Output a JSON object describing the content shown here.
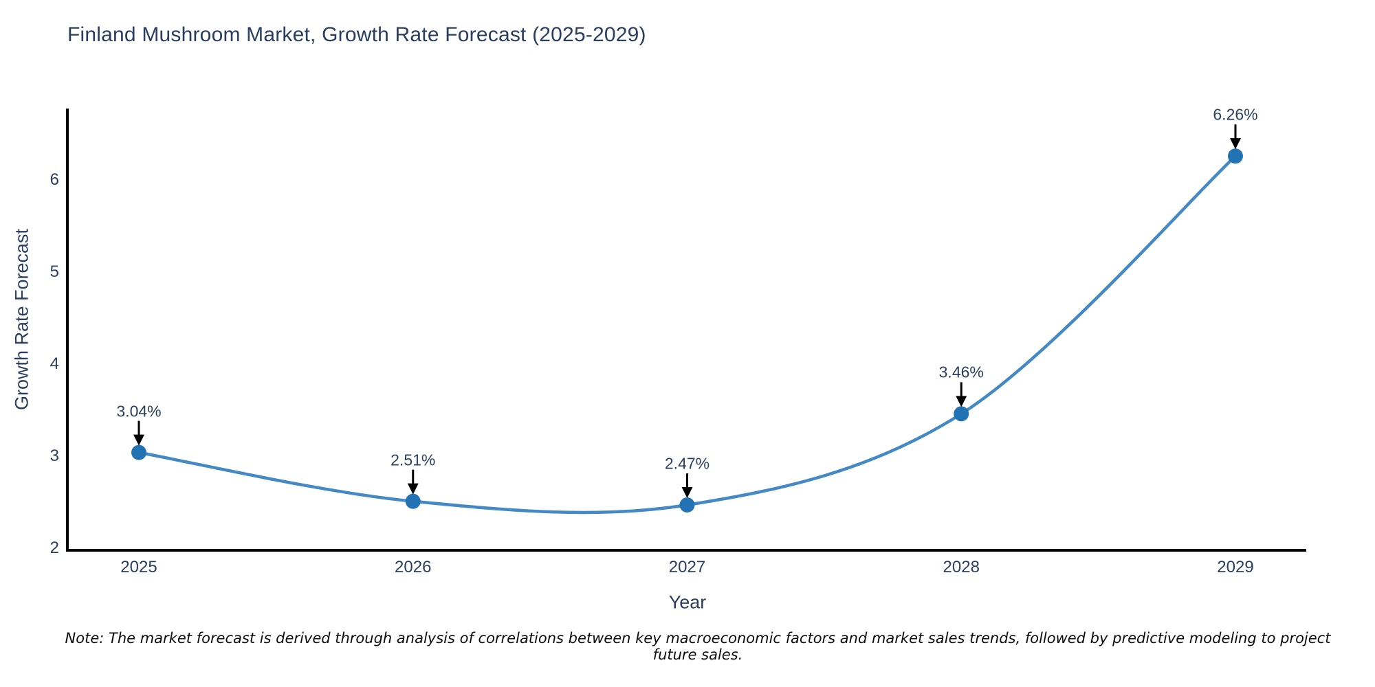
{
  "title": "Finland Mushroom Market, Growth Rate Forecast (2025-2029)",
  "note": "Note: The market forecast is derived through analysis of correlations between key macroeconomic factors and market sales trends, followed by predictive modeling to project future sales.",
  "colors": {
    "line": "#4489c4",
    "marker": "#2273b4",
    "axis": "#000000",
    "arrow": "#000000",
    "text": "#2a3f5f"
  },
  "chart_data": {
    "type": "line",
    "title": "Finland Mushroom Market, Growth Rate Forecast (2025-2029)",
    "xlabel": "Year",
    "ylabel": "Growth Rate Forecast",
    "categories": [
      "2025",
      "2026",
      "2027",
      "2028",
      "2029"
    ],
    "values": [
      3.04,
      2.51,
      2.47,
      3.46,
      6.26
    ],
    "point_labels": [
      "3.04%",
      "2.51%",
      "2.47%",
      "3.46%",
      "6.26%"
    ],
    "yticks": [
      2,
      3,
      4,
      5,
      6
    ],
    "ylim": [
      2,
      6.8
    ],
    "grid": false,
    "legend": "none",
    "line_shape": "spline",
    "annotation_style": "label-above-with-down-arrow"
  }
}
